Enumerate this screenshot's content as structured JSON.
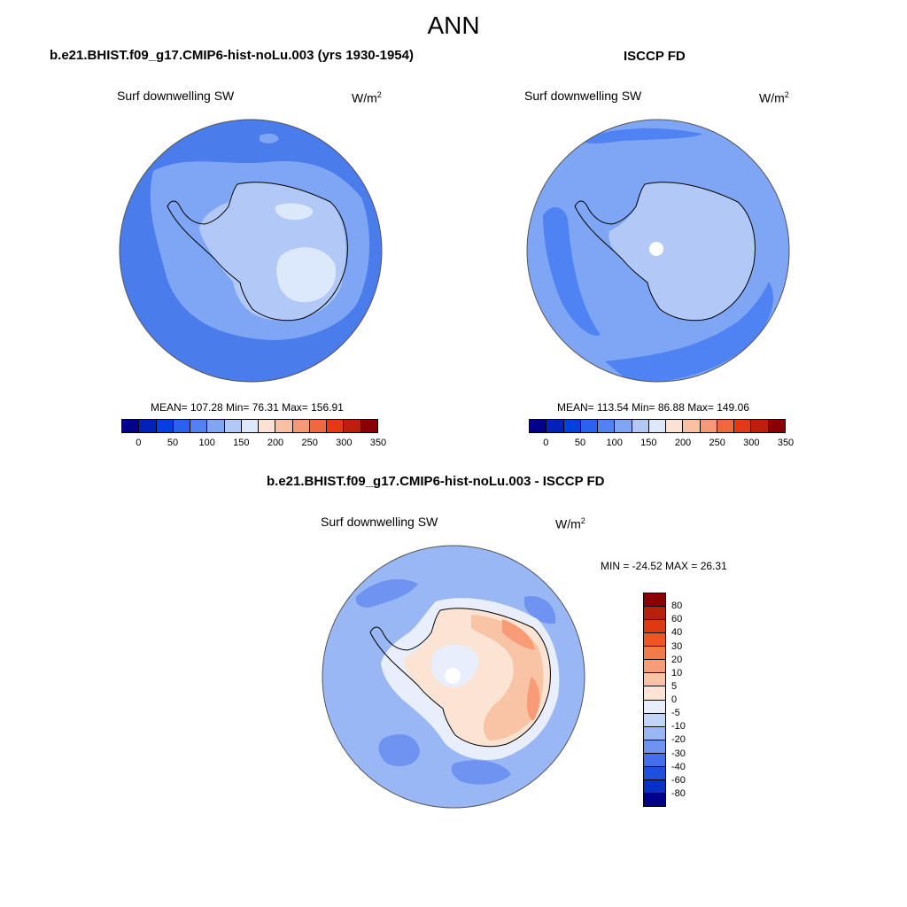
{
  "figure": {
    "title": "ANN"
  },
  "panels": [
    {
      "title": "b.e21.BHIST.f09_g17.CMIP6-hist-noLu.003 (yrs 1930-1954)",
      "variable": "Surf downwelling SW",
      "units": "W/m",
      "units_exp": "2",
      "stats": "MEAN= 107.28  Min=  76.31  Max= 156.91"
    },
    {
      "title": "ISCCP FD",
      "variable": "Surf downwelling SW",
      "units": "W/m",
      "units_exp": "2",
      "stats": "MEAN= 113.54  Min=  86.88  Max= 149.06"
    },
    {
      "title": "b.e21.BHIST.f09_g17.CMIP6-hist-noLu.003 - ISCCP FD",
      "variable": "Surf downwelling SW",
      "units": "W/m",
      "units_exp": "2",
      "stats": "MIN = -24.52 MAX =  26.31"
    }
  ],
  "colorbar_abs": {
    "ticks": [
      "0",
      "50",
      "100",
      "150",
      "200",
      "250",
      "300",
      "350"
    ],
    "colors": [
      "#00008b",
      "#0022b8",
      "#0040de",
      "#2a62f0",
      "#4f82f2",
      "#7fa6f5",
      "#b2c9f7",
      "#dce8fb",
      "#fbe2d3",
      "#f9c0a3",
      "#f59a74",
      "#ee6a3c",
      "#e33a14",
      "#bf1f0a",
      "#8b0000"
    ]
  },
  "colorbar_diff": {
    "ticks": [
      "80",
      "60",
      "40",
      "30",
      "20",
      "10",
      "5",
      "0",
      "-5",
      "-10",
      "-20",
      "-30",
      "-40",
      "-60",
      "-80"
    ],
    "colors": [
      "#8b0000",
      "#b8200b",
      "#de3a12",
      "#f05522",
      "#f57a4a",
      "#f79c76",
      "#f9c3a6",
      "#fbe4d4",
      "#e8eefb",
      "#c2d5f7",
      "#99b7f4",
      "#6e93f0",
      "#4370ea",
      "#1f4fe0",
      "#0630c6",
      "#00008b"
    ]
  },
  "map_colors": {
    "model_ocean": "#4a7cec",
    "model_coast": "#7fa6f5",
    "model_ice": "#b2c9f7",
    "model_ice_high": "#dce8fb",
    "obs_ocean": "#7fa6f5",
    "obs_ocean_dark": "#4f82f2",
    "obs_ice": "#b2c9f7",
    "diff_ocean": "#99b7f4",
    "diff_ocean_dark": "#6e93f0",
    "diff_warm1": "#fbe4d4",
    "diff_warm2": "#f9c3a6",
    "diff_warm3": "#f79c76",
    "diff_cool": "#e8eefb"
  }
}
